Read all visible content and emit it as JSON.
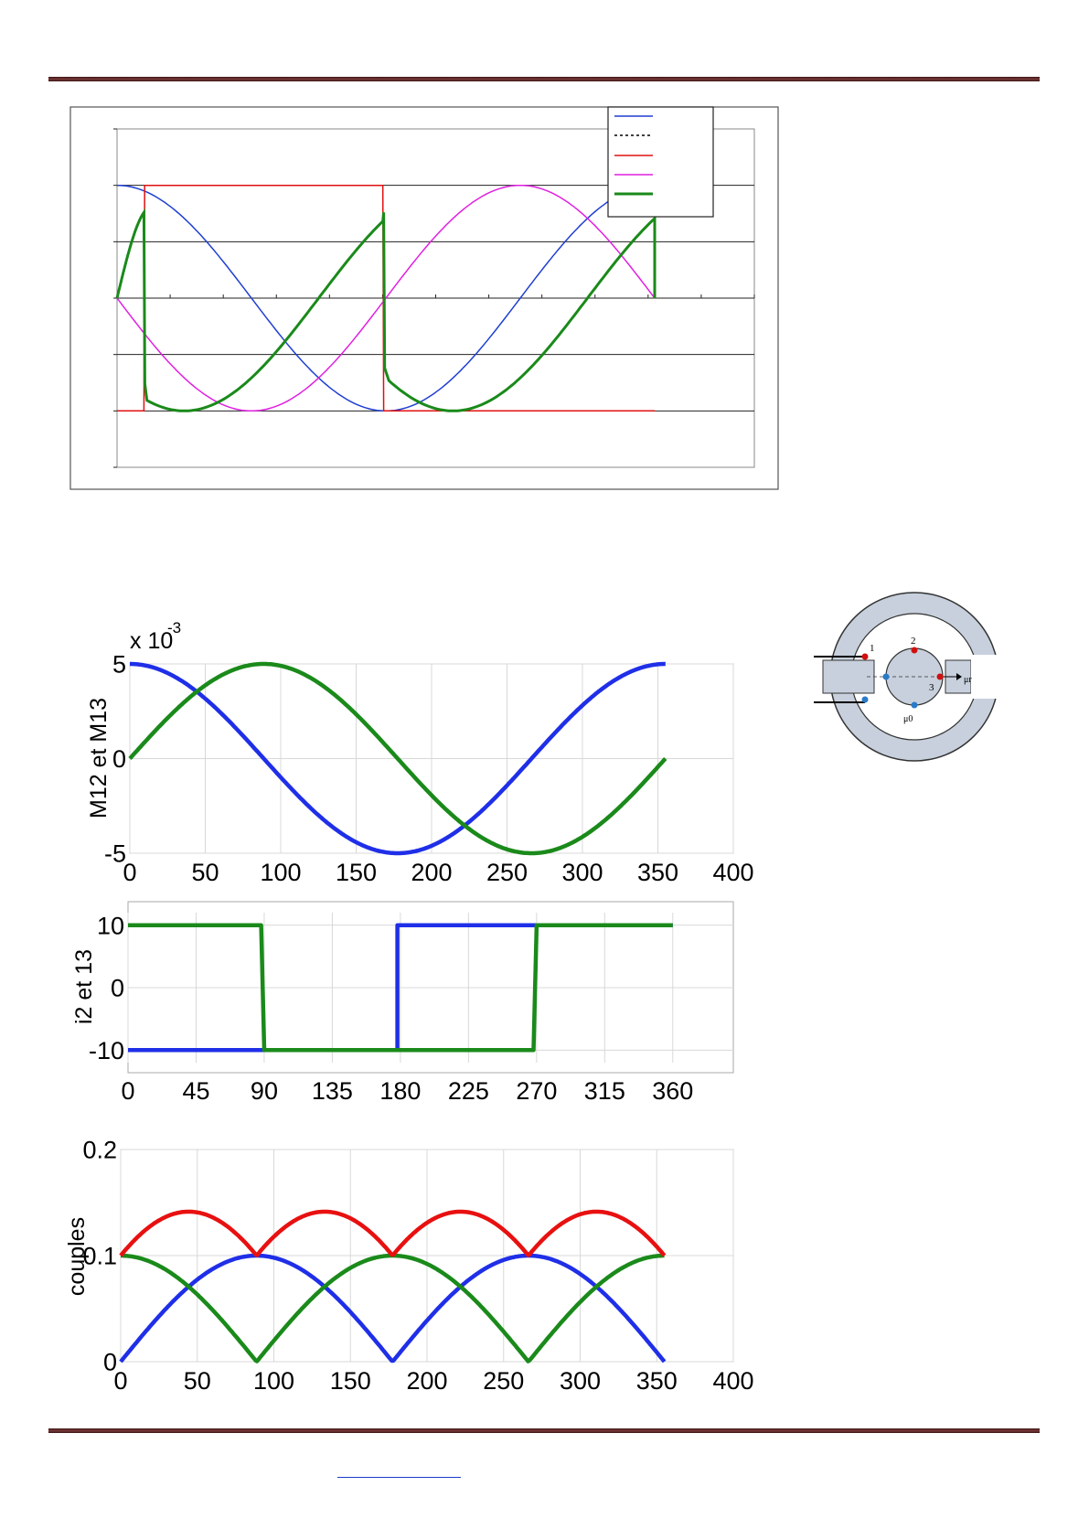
{
  "chart_data": [
    {
      "id": "top",
      "type": "line",
      "title": "",
      "xlabel": "",
      "ylabel": "",
      "xlim": [
        0,
        360
      ],
      "ylim": [
        -1.5,
        1.5
      ],
      "grid": "horizontal",
      "legend": "top-right",
      "tick_labels_x": [],
      "tick_labels_y": [],
      "series": [
        {
          "key": "s_blue",
          "color": "#1f3fd1",
          "dash": "none",
          "width": 1.5,
          "fn": "cos",
          "amp": 1
        },
        {
          "key": "s_dot",
          "color": "#000000",
          "dash": "3,3",
          "width": 1.5,
          "fn": "none",
          "amp": 0
        },
        {
          "key": "s_red",
          "color": "#e01010",
          "dash": "none",
          "width": 1.5,
          "fn": "sign_sin",
          "amp": 1
        },
        {
          "key": "s_mag",
          "color": "#e020e0",
          "dash": "none",
          "width": 1.5,
          "fn": "neg_sin",
          "amp": 1
        },
        {
          "key": "s_green",
          "color": "#1a8a1a",
          "dash": "none",
          "width": 3,
          "fn": "cos_times_sign_sin",
          "amp": 1
        }
      ]
    },
    {
      "id": "m",
      "type": "line",
      "ylabel": "M12 et  M13",
      "exponent_base": "x 10",
      "exponent_power": "-3",
      "xlim": [
        0,
        400
      ],
      "ylim": [
        -5,
        5
      ],
      "xticks": [
        0,
        50,
        100,
        150,
        200,
        250,
        300,
        350,
        400
      ],
      "tick_labels_x": [
        "0",
        "50",
        "100",
        "150",
        "200",
        "250",
        "300",
        "350",
        "400"
      ],
      "tick_labels_y": [
        "5",
        "0",
        "-5"
      ],
      "yticks": [
        5,
        0,
        -5
      ],
      "grid": "both",
      "x_end": 355,
      "series": [
        {
          "color": "#1f2fe8",
          "fn": "cos",
          "amp": 5,
          "period": 355
        },
        {
          "color": "#1a8a1a",
          "fn": "sin",
          "amp": 5,
          "period": 355
        }
      ]
    },
    {
      "id": "i",
      "type": "line",
      "ylabel": "i2 et 13",
      "xlim": [
        0,
        400
      ],
      "ylim": [
        -12,
        12
      ],
      "xticks": [
        0,
        45,
        90,
        135,
        180,
        225,
        270,
        315,
        360
      ],
      "tick_labels_x": [
        "0",
        "45",
        "90",
        "135",
        "180",
        "225",
        "270",
        "315",
        "360"
      ],
      "tick_labels_y": [
        "10",
        "0",
        "-10"
      ],
      "yticks": [
        10,
        0,
        -10
      ],
      "grid": "both",
      "series": [
        {
          "color": "#1f2fe8",
          "points": [
            [
              0,
              -10
            ],
            [
              178,
              -10
            ],
            [
              178,
              10
            ],
            [
              360,
              10
            ]
          ]
        },
        {
          "color": "#1a8a1a",
          "points": [
            [
              0,
              10
            ],
            [
              88,
              10
            ],
            [
              90,
              -10
            ],
            [
              268,
              -10
            ],
            [
              270,
              10
            ],
            [
              360,
              10
            ]
          ]
        }
      ]
    },
    {
      "id": "c",
      "type": "line",
      "ylabel": "couples",
      "xlim": [
        0,
        400
      ],
      "ylim": [
        0,
        0.2
      ],
      "xticks": [
        0,
        50,
        100,
        150,
        200,
        250,
        300,
        350,
        400
      ],
      "tick_labels_x": [
        "0",
        "50",
        "100",
        "150",
        "200",
        "250",
        "300",
        "350",
        "400"
      ],
      "tick_labels_y": [
        "0.2",
        "0.1",
        "0"
      ],
      "yticks": [
        0.2,
        0.1,
        0
      ],
      "grid": "both",
      "x_end": 355,
      "series": [
        {
          "color": "#1f2fe8",
          "fn": "abs_sin",
          "amp": 0.1,
          "period": 355
        },
        {
          "color": "#1a8a1a",
          "fn": "abs_cos",
          "amp": 0.1,
          "period": 355
        },
        {
          "color": "#e81010",
          "fn": "sum_abs",
          "amp": 0.1,
          "period": 355
        }
      ]
    }
  ],
  "diagram": {
    "labels": {
      "n1": "1",
      "n2": "2",
      "n3": "3",
      "mu0": "μ0",
      "mur": "μr"
    },
    "colors": {
      "ring": "#c7d0dc",
      "red_dot": "#d01010",
      "blue_dot": "#2a7ac8"
    }
  }
}
